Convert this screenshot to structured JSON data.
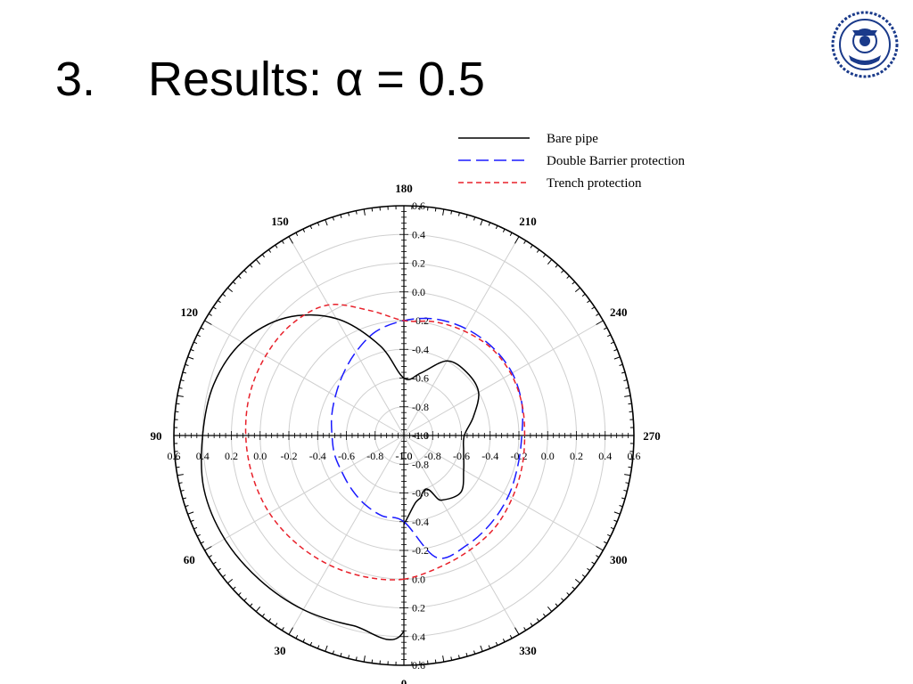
{
  "slide": {
    "number": "3.",
    "title": "Results: α = 0.5"
  },
  "logo": {
    "icon": "university-seal-icon",
    "color": "#1a3a8a"
  },
  "chart_data": {
    "type": "polar-line",
    "radial_axis": {
      "min": -1.0,
      "max": 0.6,
      "step": 0.2
    },
    "angle_axis": {
      "step_labels": 30,
      "direction": "counterclockwise",
      "zero_at": "bottom"
    },
    "angle_labels": [
      "0",
      "30",
      "60",
      "90",
      "120",
      "150",
      "180",
      "210",
      "240",
      "270",
      "300",
      "330"
    ],
    "radial_tick_labels": [
      "0.6",
      "0.4",
      "0.2",
      "0.0",
      "-0.2",
      "-0.4",
      "-0.6",
      "-0.8",
      "-1.0"
    ],
    "grid": true,
    "legend_position": "top-right",
    "series": [
      {
        "name": "Bare pipe",
        "color": "#000000",
        "dash": "solid",
        "theta": [
          0,
          15,
          30,
          45,
          60,
          75,
          90,
          105,
          120,
          135,
          150,
          165,
          180,
          195,
          210,
          225,
          240,
          255,
          270,
          285,
          300,
          315,
          330,
          345,
          360
        ],
        "r": [
          0.36,
          0.37,
          0.4,
          0.42,
          0.44,
          0.44,
          0.4,
          0.37,
          0.3,
          0.16,
          -0.06,
          -0.35,
          -0.6,
          -0.55,
          -0.4,
          -0.38,
          -0.4,
          -0.5,
          -0.58,
          -0.57,
          -0.52,
          -0.44,
          -0.48,
          -0.55,
          -0.38
        ]
      },
      {
        "name": "Double Barrier protection",
        "color": "#1a1aff",
        "dash": "long-dash",
        "theta": [
          0,
          15,
          30,
          45,
          60,
          75,
          90,
          105,
          120,
          135,
          150,
          165,
          180,
          195,
          210,
          225,
          240,
          255,
          270,
          285,
          300,
          315,
          330,
          345,
          360
        ],
        "r": [
          -0.4,
          -0.42,
          -0.45,
          -0.48,
          -0.5,
          -0.5,
          -0.5,
          -0.48,
          -0.45,
          -0.4,
          -0.33,
          -0.25,
          -0.2,
          -0.16,
          -0.14,
          -0.13,
          -0.13,
          -0.15,
          -0.18,
          -0.18,
          -0.16,
          -0.14,
          -0.12,
          -0.12,
          -0.4
        ]
      },
      {
        "name": "Trench protection",
        "color": "#e8202a",
        "dash": "short-dash",
        "theta": [
          0,
          15,
          30,
          45,
          60,
          75,
          90,
          105,
          120,
          135,
          150,
          165,
          180,
          195,
          210,
          225,
          240,
          255,
          270,
          285,
          300,
          315,
          330,
          345,
          360
        ],
        "r": [
          0.0,
          0.02,
          0.04,
          0.06,
          0.08,
          0.09,
          0.1,
          0.11,
          0.11,
          0.1,
          0.05,
          -0.1,
          -0.2,
          -0.18,
          -0.16,
          -0.14,
          -0.14,
          -0.15,
          -0.16,
          -0.15,
          -0.13,
          -0.1,
          -0.08,
          -0.05,
          0.0
        ]
      }
    ]
  }
}
